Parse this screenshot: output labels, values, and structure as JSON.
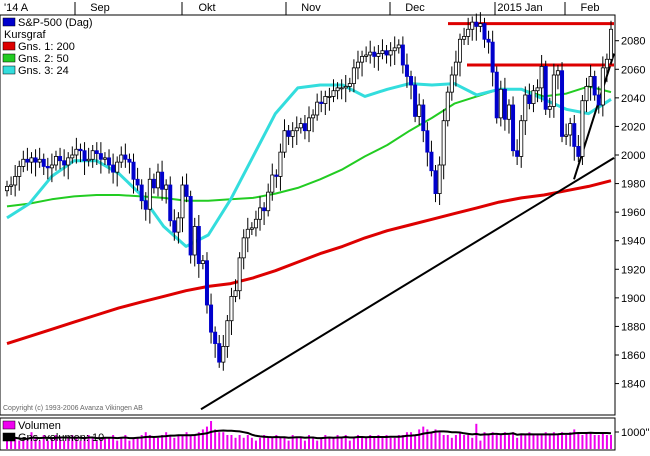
{
  "chart_data": {
    "type": "candlestick",
    "title": "S&P-500 (Dag)",
    "x_labels": [
      "'14 A",
      "Sep",
      "Okt",
      "Nov",
      "Dec",
      "2015 Jan",
      "Feb"
    ],
    "y_ticks": [
      1840,
      1860,
      1880,
      1900,
      1920,
      1940,
      1960,
      1980,
      2000,
      2020,
      2040,
      2060,
      2080
    ],
    "ylim": [
      1818,
      2098
    ],
    "grid": false,
    "legend": {
      "placement": "top-left",
      "entries": [
        {
          "label": "S&P-500 (Dag)",
          "color": "#0000cc"
        },
        {
          "label": "Kursgraf",
          "color": ""
        },
        {
          "label": "Gns. 1: 200",
          "color": "#dd0000"
        },
        {
          "label": "Gns. 2: 50",
          "color": "#22cc22"
        },
        {
          "label": "Gns. 3: 24",
          "color": "#33dddd"
        }
      ]
    },
    "price": [
      1978,
      1979,
      1985,
      1992,
      1997,
      1995,
      1998,
      1995,
      1997,
      1992,
      1991,
      1993,
      1999,
      1996,
      1993,
      1998,
      2000,
      2004,
      2003,
      1996,
      1997,
      2003,
      2001,
      1997,
      1998,
      1993,
      1988,
      1995,
      2000,
      1997,
      1995,
      1983,
      1979,
      1968,
      1962,
      1983,
      1977,
      1988,
      1976,
      1979,
      1954,
      1946,
      1956,
      1979,
      1971,
      1930,
      1950,
      1924,
      1926,
      1895,
      1876,
      1868,
      1855,
      1866,
      1884,
      1901,
      1905,
      1928,
      1942,
      1948,
      1949,
      1955,
      1963,
      1961,
      1974,
      1986,
      1985,
      2002,
      2017,
      2013,
      2017,
      2019,
      2022,
      2017,
      2026,
      2028,
      2037,
      2036,
      2041,
      2041,
      2045,
      2047,
      2047,
      2048,
      2050,
      2061,
      2065,
      2069,
      2070,
      2072,
      2069,
      2071,
      2073,
      2070,
      2073,
      2075,
      2077,
      2063,
      2055,
      2049,
      2027,
      2035,
      2017,
      2002,
      1989,
      1973,
      1993,
      2024,
      2044,
      2056,
      2065,
      2081,
      2083,
      2088,
      2093,
      2090,
      2092,
      2081,
      2079,
      2058,
      2026,
      2046,
      2025,
      2035,
      2003,
      1999,
      2024,
      2042,
      2036,
      2045,
      2047,
      2062,
      2032,
      2034,
      2056,
      2059,
      2013,
      2014,
      2022,
      2006,
      1999,
      2038,
      2048,
      2055,
      2042,
      2035,
      2061,
      2067,
      2088
    ],
    "volume": [
      0.3,
      0.5,
      0.4,
      0.3,
      0.3,
      0.4,
      0.6,
      0.4,
      0.3,
      0.5,
      0.3,
      0.4,
      0.5,
      0.4,
      0.3,
      0.4,
      0.5,
      0.4,
      0.3,
      0.4,
      0.5,
      0.4,
      0.3,
      0.4,
      0.4,
      0.4,
      0.5,
      0.3,
      0.4,
      0.5,
      0.3,
      0.4,
      0.4,
      0.5,
      0.6,
      0.5,
      0.4,
      0.4,
      0.5,
      0.6,
      0.5,
      0.4,
      0.5,
      0.5,
      0.6,
      0.5,
      0.5,
      0.6,
      0.7,
      0.8,
      1.0,
      0.7,
      0.6,
      0.6,
      0.5,
      0.5,
      0.4,
      0.5,
      0.4,
      0.5,
      0.4,
      0.3,
      0.4,
      0.5,
      0.4,
      0.4,
      0.5,
      0.4,
      0.4,
      0.3,
      0.5,
      0.4,
      0.4,
      0.3,
      0.5,
      0.4,
      0.3,
      0.4,
      0.5,
      0.4,
      0.4,
      0.5,
      0.4,
      0.5,
      0.3,
      0.4,
      0.5,
      0.4,
      0.4,
      0.5,
      0.4,
      0.5,
      0.4,
      0.5,
      0.4,
      0.4,
      0.5,
      0.5,
      0.6,
      0.6,
      0.5,
      0.7,
      0.8,
      0.7,
      0.6,
      0.7,
      0.6,
      0.5,
      0.5,
      0.4,
      0.5,
      0.6,
      0.5,
      0.5,
      0.4,
      0.9,
      0.3,
      0.6,
      0.5,
      0.6,
      0.5,
      0.5,
      0.6,
      0.5,
      0.6,
      0.4,
      0.5,
      0.5,
      0.6,
      0.5,
      0.5,
      0.5,
      0.6,
      0.5,
      0.6,
      0.5,
      0.6,
      0.5,
      0.6,
      0.7,
      0.6,
      0.5,
      0.6,
      0.6,
      0.5,
      0.5,
      0.6,
      0.5,
      0.5
    ],
    "ma200": [
      1868,
      1873,
      1878,
      1883,
      1888,
      1893,
      1897,
      1901,
      1905,
      1908,
      1910,
      1914,
      1919,
      1925,
      1931,
      1936,
      1942,
      1947,
      1951,
      1955,
      1959,
      1963,
      1967,
      1970,
      1972,
      1975,
      1978,
      1982
    ],
    "ma50": [
      1964,
      1966,
      1969,
      1971,
      1972,
      1972,
      1971,
      1970,
      1968,
      1968,
      1969,
      1970,
      1973,
      1977,
      1983,
      1990,
      1999,
      2007,
      2017,
      2026,
      2036,
      2041,
      2046,
      2046,
      2041,
      2043,
      2048,
      2044
    ],
    "ma24": [
      1956,
      1966,
      1985,
      1996,
      1996,
      1987,
      1972,
      1950,
      1936,
      1944,
      1969,
      1999,
      2029,
      2047,
      2049,
      2049,
      2041,
      2046,
      2050,
      2049,
      2050,
      2042,
      2046,
      2046,
      2039,
      2032,
      2029,
      2039
    ],
    "support_lines": [
      {
        "from": [
          "Okt",
          1822
        ],
        "to": [
          "Feb",
          1998
        ]
      },
      {
        "from": [
          "2015 Jan",
          1983
        ],
        "to": [
          "Feb",
          2071
        ]
      }
    ],
    "resistance_lines": [
      {
        "from": [
          "Dec",
          2092
        ],
        "to": [
          "Feb",
          2092
        ]
      },
      {
        "from": [
          "Dec",
          2063
        ],
        "to": [
          "Feb",
          2063
        ]
      }
    ],
    "volume_panel": {
      "legend": [
        {
          "label": "Volumen",
          "color": "#ee00ee"
        },
        {
          "label": "Gns. volumen: 10",
          "color": "#000000"
        }
      ],
      "y_tick": "1000\""
    },
    "copyright": "Copyright (c) 1993-2006 Avanza Vikingen AB"
  }
}
